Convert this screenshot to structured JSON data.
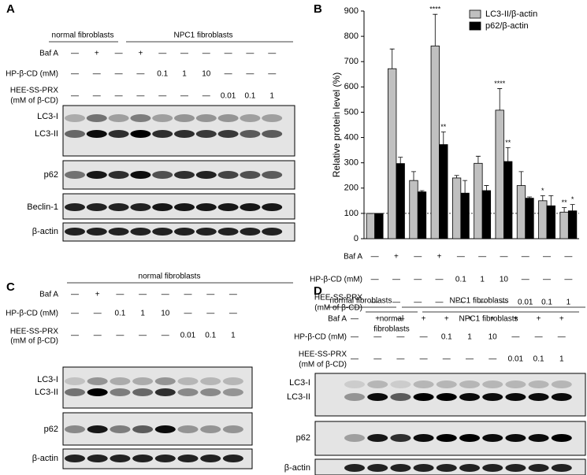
{
  "panels": {
    "A": {
      "label": "A",
      "groups": [
        "normal fibroblasts",
        "NPC1 fibroblasts"
      ],
      "rows": [
        {
          "label": [
            "Baf A"
          ],
          "cells": [
            "—",
            "+",
            "—",
            "+",
            "—",
            "—",
            "—",
            "—",
            "—",
            "—"
          ]
        },
        {
          "label": [
            "HP-β-CD (mM)"
          ],
          "cells": [
            "—",
            "—",
            "—",
            "—",
            "0.1",
            "1",
            "10",
            "—",
            "—",
            "—"
          ]
        },
        {
          "label": [
            "HEE-SS-PRX",
            "(mM of β-CD)"
          ],
          "cells": [
            "—",
            "—",
            "—",
            "—",
            "—",
            "—",
            "—",
            "0.01",
            "0.1",
            "1"
          ]
        }
      ],
      "blots": [
        [
          "LC3-I",
          "LC3-II"
        ],
        [
          "p62"
        ],
        [
          "Beclin-1"
        ],
        [
          "β-actin"
        ]
      ]
    },
    "C": {
      "label": "C",
      "groups": [
        "normal fibroblasts"
      ],
      "rows": [
        {
          "label": [
            "Baf A"
          ],
          "cells": [
            "—",
            "+",
            "—",
            "—",
            "—",
            "—",
            "—",
            "—"
          ]
        },
        {
          "label": [
            "HP-β-CD (mM)"
          ],
          "cells": [
            "—",
            "—",
            "0.1",
            "1",
            "10",
            "—",
            "—",
            "—"
          ]
        },
        {
          "label": [
            "HEE-SS-PRX",
            "(mM of β-CD)"
          ],
          "cells": [
            "—",
            "—",
            "—",
            "—",
            "—",
            "0.01",
            "0.1",
            "1"
          ]
        }
      ],
      "blots": [
        [
          "LC3-I",
          "LC3-II"
        ],
        [
          "p62"
        ],
        [
          "β-actin"
        ]
      ]
    },
    "D": {
      "label": "D",
      "groups": [
        "normal fibroblasts",
        "NPC1 fibroblasts"
      ],
      "rows": [
        {
          "label": [
            "Baf A"
          ],
          "cells": [
            "—",
            "+",
            "—",
            "+",
            "+",
            "+",
            "+",
            "+",
            "+",
            "+"
          ]
        },
        {
          "label": [
            "HP-β-CD (mM)"
          ],
          "cells": [
            "—",
            "—",
            "—",
            "—",
            "0.1",
            "1",
            "10",
            "—",
            "—",
            "—"
          ]
        },
        {
          "label": [
            "HEE-SS-PRX",
            "(mM of β-CD)"
          ],
          "cells": [
            "—",
            "—",
            "—",
            "—",
            "—",
            "—",
            "—",
            "0.01",
            "0.1",
            "1"
          ]
        }
      ],
      "blots": [
        [
          "LC3-I",
          "LC3-II"
        ],
        [
          "p62"
        ],
        [
          "β-actin"
        ]
      ]
    }
  },
  "chart_data": {
    "type": "bar",
    "label": "B",
    "ylabel": "Relative protein level (%)",
    "categories": [
      null,
      null,
      null,
      null,
      null,
      null,
      null,
      null,
      null,
      null
    ],
    "ylim": [
      0,
      900
    ],
    "yticks": [
      0,
      100,
      200,
      300,
      400,
      500,
      600,
      700,
      800,
      900
    ],
    "reference_line": 100,
    "legend": "top-right",
    "series": [
      {
        "name": "LC3-II/β-actin",
        "color": "#c0c0c0",
        "values": [
          100,
          672,
          230,
          762,
          240,
          298,
          508,
          210,
          150,
          105
        ],
        "errors": [
          0,
          78,
          35,
          125,
          10,
          28,
          85,
          55,
          20,
          18
        ],
        "annotations": [
          null,
          null,
          null,
          "****",
          null,
          null,
          "****",
          null,
          "*",
          "**"
        ]
      },
      {
        "name": "p62/β-actin",
        "color": "#000000",
        "values": [
          100,
          297,
          185,
          372,
          180,
          190,
          305,
          160,
          130,
          110
        ],
        "errors": [
          0,
          25,
          5,
          50,
          50,
          20,
          55,
          5,
          40,
          25
        ],
        "annotations": [
          null,
          null,
          null,
          "**",
          null,
          null,
          "**",
          null,
          null,
          "*"
        ]
      }
    ],
    "rows": [
      {
        "label": [
          "Baf A"
        ],
        "cells": [
          "—",
          "+",
          "—",
          "+",
          "—",
          "—",
          "—",
          "—",
          "—",
          "—"
        ]
      },
      {
        "label": [
          "HP-β-CD (mM)"
        ],
        "cells": [
          "—",
          "—",
          "—",
          "—",
          "0.1",
          "1",
          "10",
          "—",
          "—",
          "—"
        ]
      },
      {
        "label": [
          "HEE-SS-PRX",
          "(mM of β-CD)"
        ],
        "cells": [
          "—",
          "—",
          "—",
          "—",
          "—",
          "—",
          "—",
          "0.01",
          "0.1",
          "1"
        ]
      }
    ],
    "groups": [
      [
        "normal",
        "fibroblasts"
      ],
      [
        "NPC1 fibroblasts"
      ]
    ]
  }
}
